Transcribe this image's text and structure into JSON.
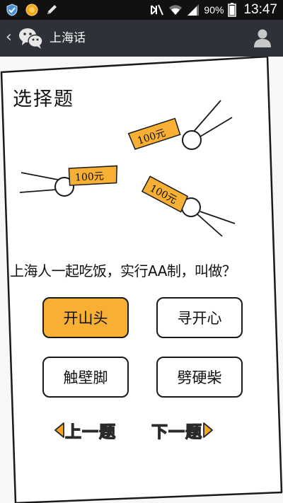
{
  "status_bar": {
    "battery_percent": "90%",
    "time": "13:47",
    "icons": [
      "shield-icon",
      "coin-icon",
      "pen-icon",
      "mute-icon",
      "wifi-icon",
      "signal-icon",
      "battery-icon"
    ]
  },
  "header": {
    "back_icon": "chevron-left-icon",
    "app_icon": "wechat-icon",
    "title": "上海话",
    "profile_icon": "person-icon"
  },
  "quiz": {
    "heading": "选择题",
    "bill_labels": [
      "100元",
      "100元",
      "100元"
    ],
    "question": "上海人一起吃饭，实行AA制，叫做？",
    "options": [
      {
        "label": "开山头",
        "selected": true
      },
      {
        "label": "寻开心",
        "selected": false
      },
      {
        "label": "触壁脚",
        "selected": false
      },
      {
        "label": "劈硬柴",
        "selected": false
      }
    ],
    "prev_label": "上一题",
    "next_label": "下一题"
  },
  "colors": {
    "accent_orange": "#f7b033",
    "title_bar": "#2e3238",
    "status_bar": "#111111"
  }
}
